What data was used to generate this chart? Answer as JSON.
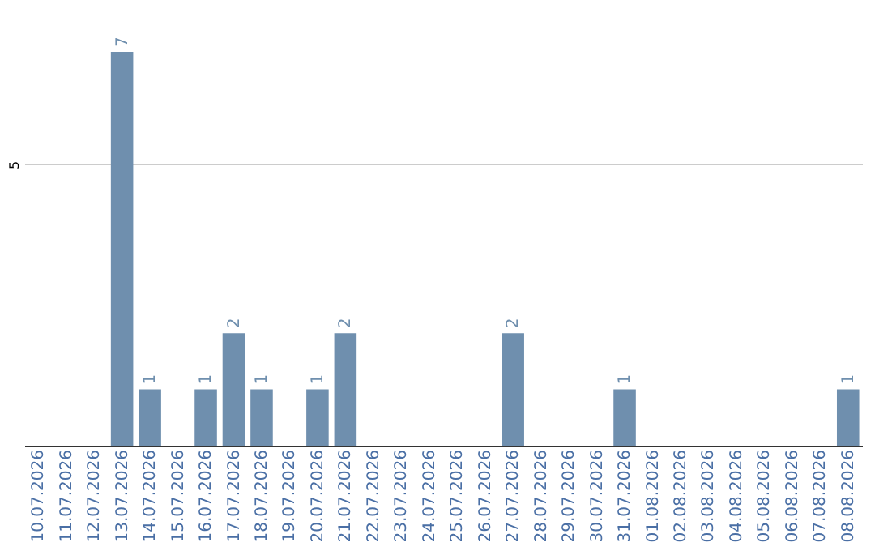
{
  "chart_data": {
    "type": "bar",
    "categories": [
      "10.07.2026",
      "11.07.2026",
      "12.07.2026",
      "13.07.2026",
      "14.07.2026",
      "15.07.2026",
      "16.07.2026",
      "17.07.2026",
      "18.07.2026",
      "19.07.2026",
      "20.07.2026",
      "21.07.2026",
      "22.07.2026",
      "23.07.2026",
      "24.07.2026",
      "25.07.2026",
      "26.07.2026",
      "27.07.2026",
      "28.07.2026",
      "29.07.2026",
      "30.07.2026",
      "31.07.2026",
      "01.08.2026",
      "02.08.2026",
      "03.08.2026",
      "04.08.2026",
      "05.08.2026",
      "06.08.2026",
      "07.08.2026",
      "08.08.2026"
    ],
    "values": [
      0,
      0,
      0,
      7,
      1,
      0,
      1,
      2,
      1,
      0,
      1,
      2,
      0,
      0,
      0,
      0,
      0,
      2,
      0,
      0,
      0,
      1,
      0,
      0,
      0,
      0,
      0,
      0,
      0,
      1
    ],
    "value_labels": [
      null,
      null,
      null,
      "7",
      "1",
      null,
      "1",
      "2",
      "1",
      null,
      "1",
      "2",
      null,
      null,
      null,
      null,
      null,
      "2",
      null,
      null,
      null,
      "1",
      null,
      null,
      null,
      null,
      null,
      null,
      null,
      "1"
    ],
    "color": "#6f8fae",
    "ylim": [
      0,
      7
    ],
    "yticks": [
      {
        "value": 0,
        "label": null
      },
      5
    ],
    "grid": "y"
  }
}
